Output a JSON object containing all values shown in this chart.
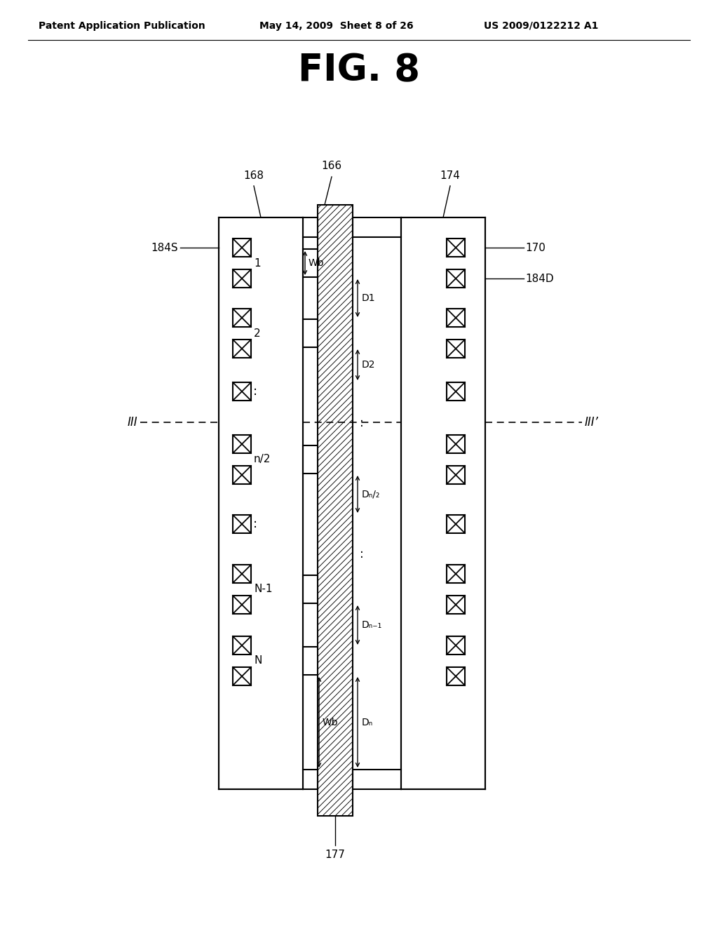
{
  "title": "FIG. 8",
  "header_left": "Patent Application Publication",
  "header_mid": "May 14, 2009  Sheet 8 of 26",
  "header_right": "US 2009/0122212 A1",
  "bg_color": "#ffffff",
  "lc": "#000000",
  "label_168": "168",
  "label_166": "166",
  "label_174": "174",
  "label_170": "170",
  "label_184S": "184S",
  "label_184D": "184D",
  "label_177": "177",
  "label_III": "III",
  "label_IIIp": "III’",
  "wb_label": "Wb",
  "d_labels": [
    "D1",
    "D2",
    "Dₙ/₂",
    "Dₙ₋₁",
    "Dₙ"
  ],
  "ch_numbers": [
    "1",
    "2",
    "N-1",
    "N"
  ]
}
